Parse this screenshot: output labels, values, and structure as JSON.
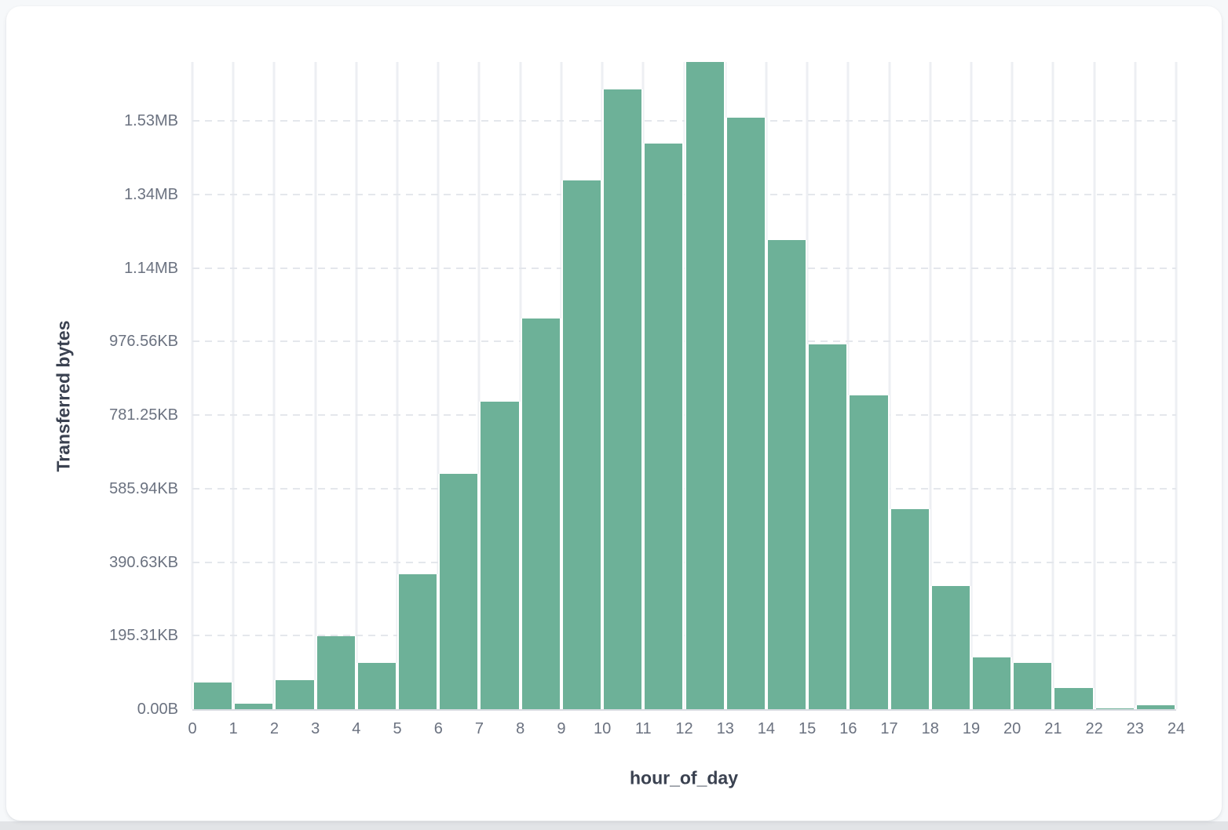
{
  "chart_data": {
    "type": "bar",
    "subtype": "histogram",
    "title": "",
    "xlabel": "hour_of_day",
    "ylabel": "Transferred bytes",
    "categories": [
      0,
      1,
      2,
      3,
      4,
      5,
      6,
      7,
      8,
      9,
      10,
      11,
      12,
      13,
      14,
      15,
      16,
      17,
      18,
      19,
      20,
      21,
      22,
      23
    ],
    "values_bytes": [
      72000,
      16000,
      79000,
      198000,
      125000,
      367000,
      641000,
      836000,
      1063000,
      1437000,
      1685000,
      1539000,
      1760000,
      1609000,
      1275000,
      993000,
      854000,
      545000,
      334000,
      141000,
      125000,
      58500,
      3000,
      11500
    ],
    "x_tick_labels": [
      "0",
      "1",
      "2",
      "3",
      "4",
      "5",
      "6",
      "7",
      "8",
      "9",
      "10",
      "11",
      "12",
      "13",
      "14",
      "15",
      "16",
      "17",
      "18",
      "19",
      "20",
      "21",
      "22",
      "23",
      "24"
    ],
    "y_tick_labels": [
      "0.00B",
      "195.31KB",
      "390.63KB",
      "585.94KB",
      "781.25KB",
      "976.56KB",
      "1.14MB",
      "1.34MB",
      "1.53MB"
    ],
    "y_tick_values_bytes": [
      0,
      200000,
      400000,
      600000,
      800000,
      1000000,
      1200000,
      1400000,
      1600000
    ],
    "ylim_bytes": [
      0,
      1760000
    ],
    "grid": true,
    "legend": false,
    "colors": {
      "bar_fill": "#6DB198",
      "bar_stroke": "#ffffff",
      "v_gridline": "#edeff3",
      "h_gridline_dashed": "#e4e7ec",
      "axis_baseline": "#d9dce2",
      "tick_label": "#6b7280",
      "axis_title": "#3a4150",
      "card_background": "#ffffff",
      "page_background": "#f6f8fa"
    }
  }
}
